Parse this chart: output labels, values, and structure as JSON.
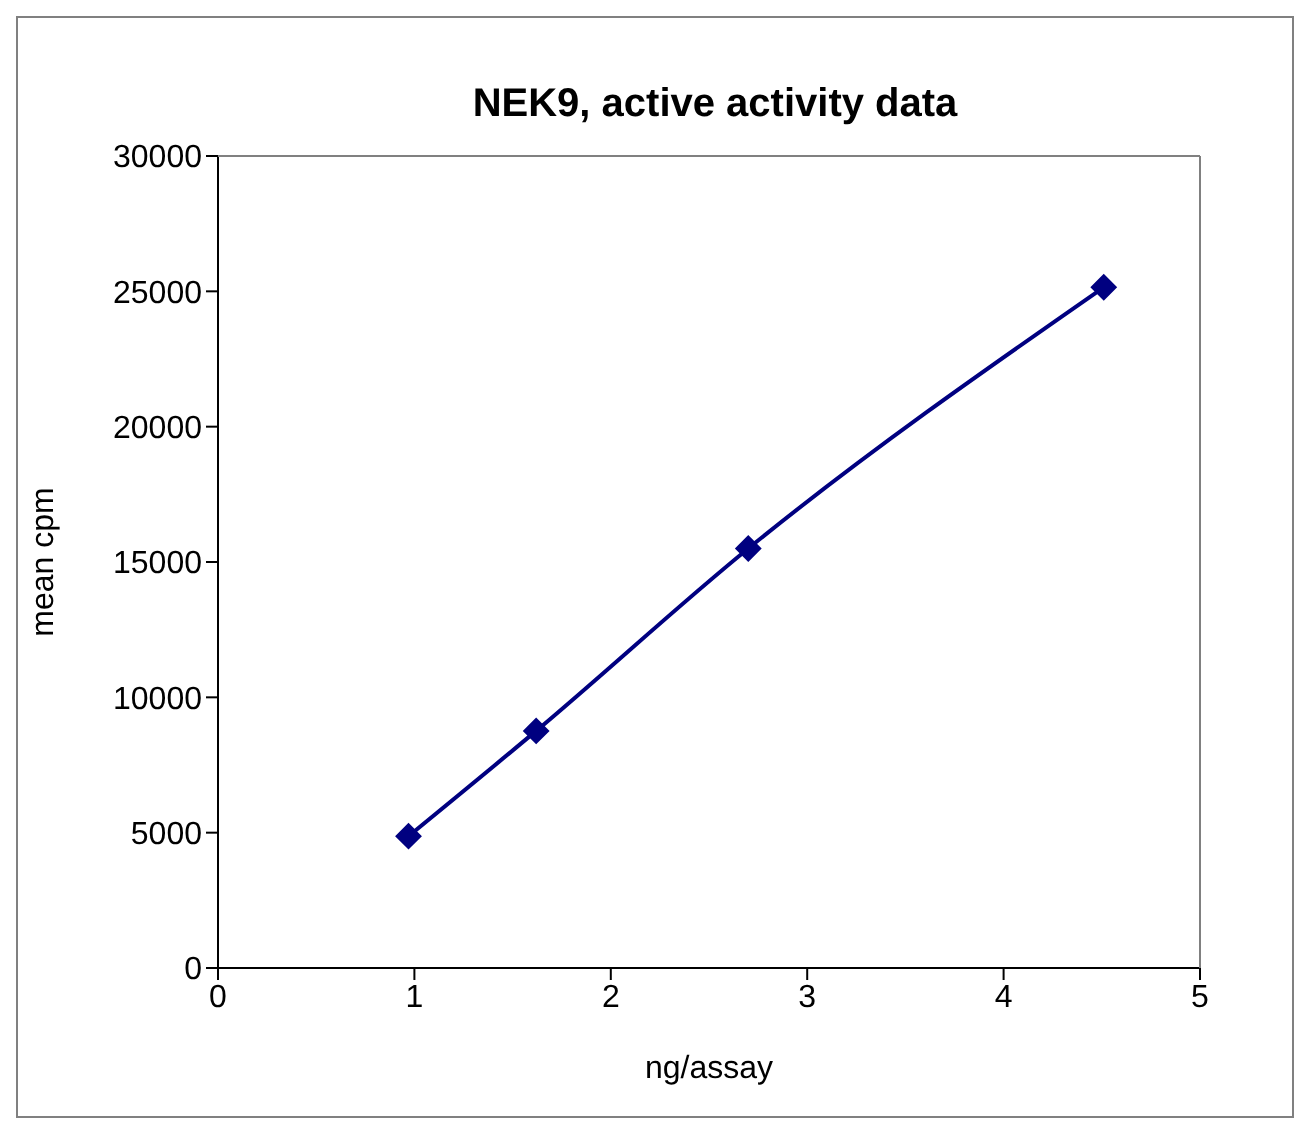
{
  "chart_data": {
    "type": "line",
    "title": "NEK9, active activity data",
    "xlabel": "ng/assay",
    "ylabel": "mean cpm",
    "x": [
      0.97,
      1.62,
      2.7,
      4.51
    ],
    "series": [
      {
        "color": "#000080",
        "values": [
          4870,
          8760,
          15500,
          25150
        ]
      }
    ],
    "xlim": [
      0,
      5
    ],
    "xticks": [
      0,
      1,
      2,
      3,
      4,
      5
    ],
    "ylim": [
      0,
      30000
    ],
    "yticks": [
      0,
      5000,
      10000,
      15000,
      20000,
      25000,
      30000
    ],
    "grid": false,
    "legend": false,
    "marker": "diamond",
    "line_style": "solid"
  }
}
